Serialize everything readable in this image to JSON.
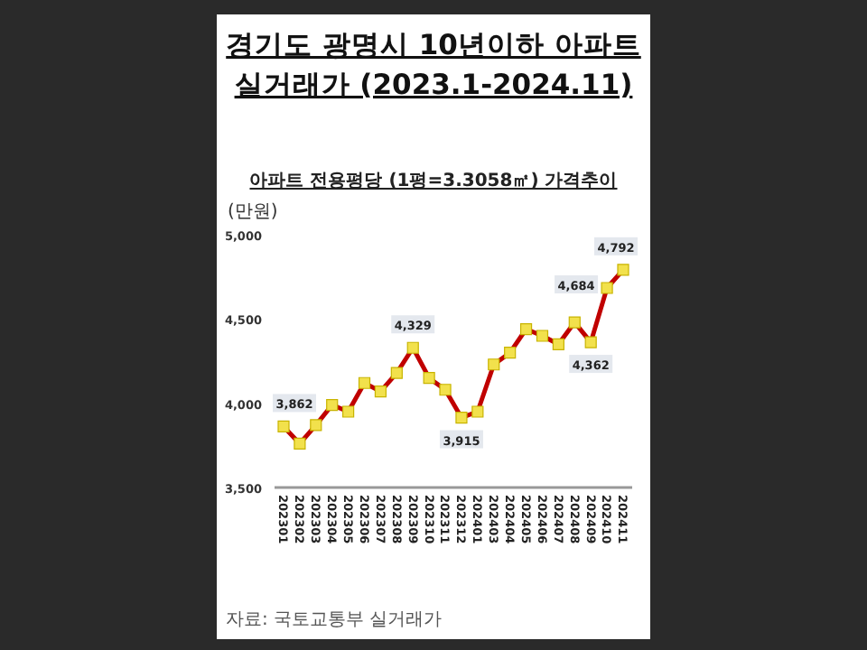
{
  "chart_data": {
    "type": "line",
    "title": "경기도 광명시 10년이하 아파트 실거래가 (2023.1-2024.11)",
    "subtitle": "아파트 전용평당 (1평=3.3058㎡) 가격추이",
    "ylabel": "(만원)",
    "categories": [
      "202301",
      "202302",
      "202303",
      "202304",
      "202305",
      "202306",
      "202307",
      "202308",
      "202309",
      "202310",
      "202311",
      "202312",
      "202401",
      "202403",
      "202404",
      "202405",
      "202406",
      "202407",
      "202408",
      "202409",
      "202410",
      "202411"
    ],
    "series": [
      {
        "color": "#c00000",
        "values": [
          3862,
          3760,
          3870,
          3990,
          3950,
          4120,
          4070,
          4180,
          4329,
          4150,
          4080,
          3915,
          3950,
          4230,
          4300,
          4440,
          4400,
          4350,
          4480,
          4362,
          4684,
          4792
        ],
        "value_labels": [
          "3,862",
          null,
          null,
          null,
          null,
          null,
          null,
          null,
          "4,329",
          null,
          null,
          "3,915",
          null,
          null,
          null,
          null,
          null,
          null,
          null,
          "4,362",
          "4,684",
          "4,792"
        ]
      }
    ],
    "ylim": [
      3500,
      5000
    ],
    "yticks": [
      {
        "value": 3500,
        "label": "3,500"
      },
      {
        "value": 4000,
        "label": "4,000"
      },
      {
        "value": 4500,
        "label": "4,500"
      },
      {
        "value": 5000,
        "label": "5,000"
      }
    ],
    "grid": false,
    "marker": "square",
    "line_style": "solid",
    "annotations": [
      "자료: 국토교통부 실거래가"
    ]
  }
}
